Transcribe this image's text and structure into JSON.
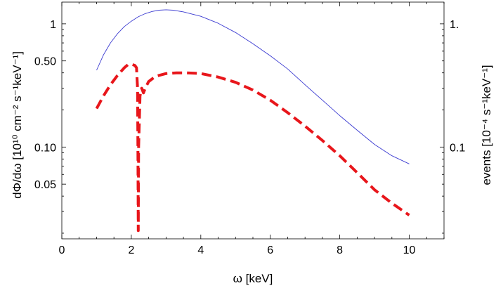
{
  "chart_data": {
    "type": "line",
    "xlabel": "ω [keV]",
    "ylabel_left": "dΦ/dω [10¹⁰ cm⁻² s⁻¹keV⁻¹]",
    "ylabel_right": "events [10⁻⁴ s⁻¹keV⁻¹]",
    "x_range": [
      0,
      11
    ],
    "y_left_range": [
      0.018,
      1.5
    ],
    "y_left_scale": "log",
    "y_right_range": [
      0.018,
      1.5
    ],
    "y_right_scale": "log",
    "x_ticks": [
      {
        "value": 0,
        "label": "0"
      },
      {
        "value": 2,
        "label": "2"
      },
      {
        "value": 4,
        "label": "4"
      },
      {
        "value": 6,
        "label": "6"
      },
      {
        "value": 8,
        "label": "8"
      },
      {
        "value": 10,
        "label": "10"
      }
    ],
    "y_left_ticks": [
      {
        "value": 1,
        "label": "1"
      },
      {
        "value": 0.5,
        "label": "0.50"
      },
      {
        "value": 0.1,
        "label": "0.10"
      },
      {
        "value": 0.05,
        "label": "0.05"
      }
    ],
    "y_right_ticks": [
      {
        "value": 1,
        "label": "1."
      },
      {
        "value": 0.1,
        "label": "0.1"
      }
    ],
    "grid": false,
    "series": [
      {
        "axis": "left",
        "style": "solid",
        "color": "#3b3bd1",
        "x": [
          1.0,
          1.2,
          1.4,
          1.6,
          1.8,
          2.0,
          2.2,
          2.4,
          2.6,
          2.8,
          3.0,
          3.2,
          3.5,
          4.0,
          4.5,
          5.0,
          5.5,
          6.0,
          6.5,
          7.0,
          7.5,
          8.0,
          8.5,
          9.0,
          9.5,
          10.0
        ],
        "y": [
          0.42,
          0.56,
          0.7,
          0.83,
          0.95,
          1.05,
          1.14,
          1.21,
          1.26,
          1.29,
          1.3,
          1.29,
          1.25,
          1.15,
          1.01,
          0.85,
          0.69,
          0.55,
          0.43,
          0.32,
          0.24,
          0.18,
          0.137,
          0.105,
          0.085,
          0.073
        ]
      },
      {
        "axis": "right",
        "style": "dashed",
        "color": "#e8161b",
        "x": [
          1.0,
          1.2,
          1.4,
          1.6,
          1.8,
          1.9,
          2.0,
          2.1,
          2.15,
          2.18,
          2.19,
          2.2,
          2.21,
          2.25,
          2.3,
          2.35,
          2.4,
          2.5,
          2.7,
          3.0,
          3.3,
          3.6,
          4.0,
          4.5,
          5.0,
          5.5,
          6.0,
          6.5,
          7.0,
          7.5,
          8.0,
          8.5,
          9.0,
          9.5,
          10.0
        ],
        "y": [
          0.205,
          0.26,
          0.32,
          0.38,
          0.44,
          0.465,
          0.47,
          0.46,
          0.44,
          0.3,
          0.1,
          0.021,
          0.1,
          0.26,
          0.3,
          0.275,
          0.3,
          0.34,
          0.375,
          0.395,
          0.4,
          0.4,
          0.395,
          0.37,
          0.335,
          0.29,
          0.24,
          0.19,
          0.148,
          0.113,
          0.085,
          0.062,
          0.045,
          0.035,
          0.028
        ]
      }
    ]
  }
}
